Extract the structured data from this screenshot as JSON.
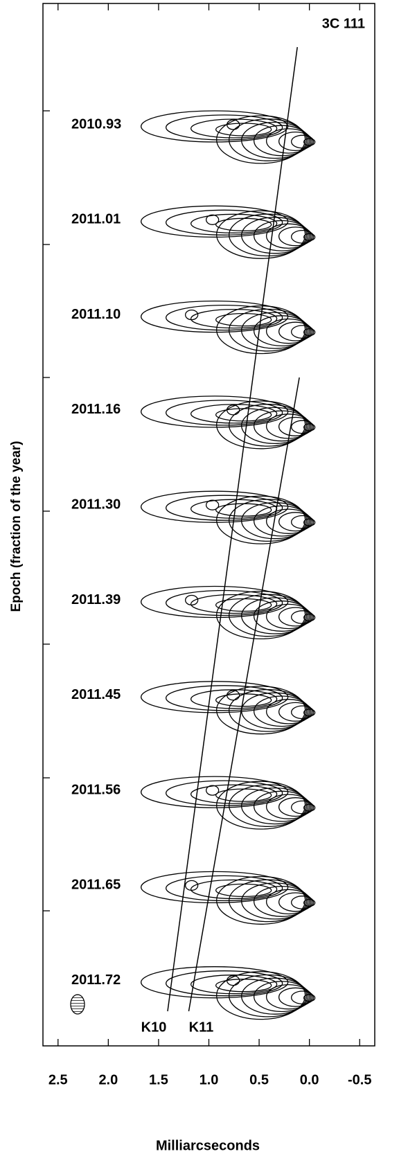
{
  "chart_data": {
    "type": "contour",
    "title": "3C 111",
    "xlabel": "Milliarcseconds",
    "ylabel": "Epoch (fraction of the year)",
    "xlim": [
      2.65,
      -0.65
    ],
    "xticks": [
      2.5,
      {
        "value": 2,
        "label": "2.0"
      },
      1.5,
      {
        "value": 1,
        "label": "1.0"
      },
      0.5,
      {
        "value": 0,
        "label": "0.0"
      },
      -0.5
    ],
    "epochs": [
      "2010.93",
      "2011.01",
      "2011.10",
      "2011.16",
      "2011.30",
      "2011.39",
      "2011.45",
      "2011.56",
      "2011.65",
      "2011.72"
    ],
    "components": [
      {
        "name": "K10",
        "x": [
          0.12,
          1.41
        ]
      },
      {
        "name": "K11",
        "x": [
          0.1,
          1.2
        ]
      }
    ]
  }
}
